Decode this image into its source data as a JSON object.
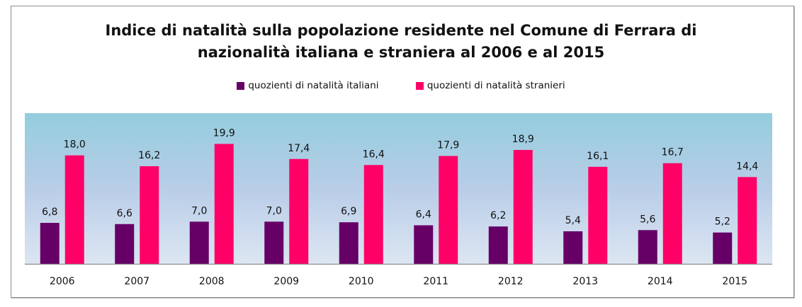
{
  "chart_data": {
    "type": "bar",
    "title": "Indice di natalità sulla popolazione residente nel Comune di Ferrara di nazionalità italiana e straniera al 2006 e al 2015",
    "title_lines": [
      "Indice di natalità sulla popolazione residente nel Comune di Ferrara di",
      "nazionalità italiana e straniera al 2006 e al 2015"
    ],
    "categories": [
      "2006",
      "2007",
      "2008",
      "2009",
      "2010",
      "2011",
      "2012",
      "2013",
      "2014",
      "2015"
    ],
    "series": [
      {
        "name": "quozienti di natalità italiani",
        "color": "#660066",
        "values": [
          6.8,
          6.6,
          7.0,
          7.0,
          6.9,
          6.4,
          6.2,
          5.4,
          5.6,
          5.2
        ],
        "labels": [
          "6,8",
          "6,6",
          "7,0",
          "7,0",
          "6,9",
          "6,4",
          "6,2",
          "5,4",
          "5,6",
          "5,2"
        ]
      },
      {
        "name": "quozienti di natalità stranieri",
        "color": "#ff0066",
        "values": [
          18.0,
          16.2,
          19.9,
          17.4,
          16.4,
          17.9,
          18.9,
          16.1,
          16.7,
          14.4
        ],
        "labels": [
          "18,0",
          "16,2",
          "19,9",
          "17,4",
          "16,4",
          "17,9",
          "18,9",
          "16,1",
          "16,7",
          "14,4"
        ]
      }
    ],
    "ylim": [
      0,
      25
    ],
    "grid": false,
    "legend_position": "top",
    "background_gradient": [
      "#93cddd",
      "#b9cde8",
      "#dce6f2"
    ]
  }
}
